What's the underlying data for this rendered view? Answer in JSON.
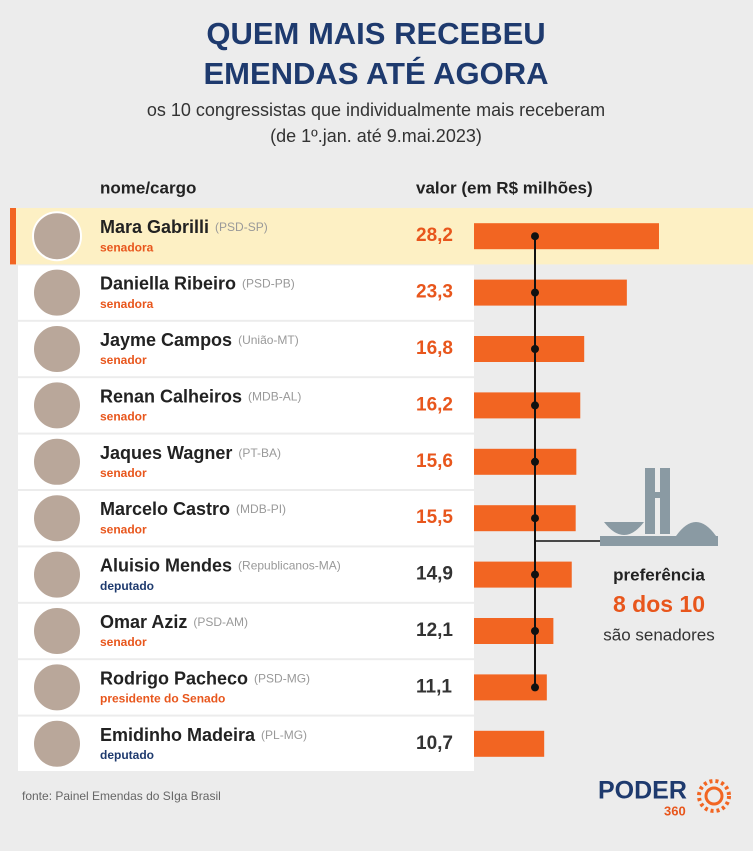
{
  "chart_data": {
    "type": "bar",
    "orientation": "horizontal",
    "title": [
      "QUEM MAIS RECEBEU",
      "EMENDAS ATÉ AGORA"
    ],
    "subtitle": [
      "os 10 congressistas que individualmente mais receberam",
      "(de 1º.jan. até 9.mai.2023)"
    ],
    "column_headers": [
      "nome/cargo",
      "valor (em R$ milhões)"
    ],
    "categories": [
      "Mara Gabrilli",
      "Daniella Ribeiro",
      "Jayme Campos",
      "Renan Calheiros",
      "Jaques Wagner",
      "Marcelo Castro",
      "Aluisio Mendes",
      "Omar Aziz",
      "Rodrigo Pacheco",
      "Emidinho Madeira"
    ],
    "parties": [
      "(PSD-SP)",
      "(PSD-PB)",
      "(União-MT)",
      "(MDB-AL)",
      "(PT-BA)",
      "(MDB-PI)",
      "(Republicanos-MA)",
      "(PSD-AM)",
      "(PSD-MG)",
      "(PL-MG)"
    ],
    "roles": [
      "senadora",
      "senadora",
      "senador",
      "senador",
      "senador",
      "senador",
      "deputado",
      "senador",
      "presidente do Senado",
      "deputado"
    ],
    "role_colors": [
      "#e8561c",
      "#e8561c",
      "#e8561c",
      "#e8561c",
      "#e8561c",
      "#e8561c",
      "#1e3a6e",
      "#e8561c",
      "#e8561c",
      "#1e3a6e"
    ],
    "values": [
      28.2,
      23.3,
      16.8,
      16.2,
      15.6,
      15.5,
      14.9,
      12.1,
      11.1,
      10.7
    ],
    "value_labels": [
      "28,2",
      "23,3",
      "16,8",
      "16,2",
      "15,6",
      "15,5",
      "14,9",
      "12,1",
      "11,1",
      "10,7"
    ],
    "value_label_colors": [
      "#e8561c",
      "#e8561c",
      "#e8561c",
      "#e8561c",
      "#e8561c",
      "#e8561c",
      "#333333",
      "#333333",
      "#333333",
      "#333333"
    ],
    "color": "#f26522",
    "annotation": [
      "preferência",
      "8 dos 10",
      "são senadores"
    ],
    "source": "fonte: Painel Emendas do SIga Brasil",
    "logo": [
      "PODER",
      "360"
    ]
  }
}
